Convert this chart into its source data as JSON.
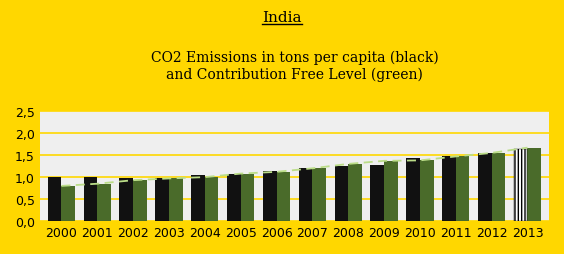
{
  "title": "India",
  "subtitle1": "CO2 Emissions in tons per capita (black)",
  "subtitle2": "and Contribution Free Level (green)",
  "background_color": "#FFD700",
  "plot_bg_color": "#EFEFEF",
  "years": [
    2000,
    2001,
    2002,
    2003,
    2004,
    2005,
    2006,
    2007,
    2008,
    2009,
    2010,
    2011,
    2012,
    2013
  ],
  "black_values": [
    1.0,
    1.0,
    0.98,
    0.98,
    1.05,
    1.08,
    1.13,
    1.2,
    1.26,
    1.28,
    1.43,
    1.47,
    1.54,
    1.65
  ],
  "green_values": [
    0.8,
    0.85,
    0.93,
    0.97,
    1.0,
    1.08,
    1.12,
    1.2,
    1.3,
    1.37,
    1.38,
    1.47,
    1.55,
    1.67
  ],
  "dashed_line": [
    0.8,
    0.85,
    0.93,
    0.97,
    1.0,
    1.08,
    1.12,
    1.2,
    1.3,
    1.37,
    1.38,
    1.47,
    1.55,
    1.67
  ],
  "black_color": "#111111",
  "green_color": "#4A6B2A",
  "line_color": "#BBDD88",
  "grid_color": "#FFD700",
  "ylim": [
    0,
    2.5
  ],
  "yticks": [
    0.0,
    0.5,
    1.0,
    1.5,
    2.0,
    2.5
  ],
  "ytick_labels": [
    "0,0",
    "0,5",
    "1,0",
    "1,5",
    "2,0",
    "2,5"
  ],
  "bar_width": 0.38,
  "title_fontsize": 11,
  "subtitle_fontsize": 10,
  "tick_fontsize": 9
}
